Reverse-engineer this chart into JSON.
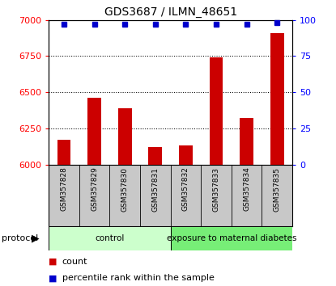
{
  "title": "GDS3687 / ILMN_48651",
  "samples": [
    "GSM357828",
    "GSM357829",
    "GSM357830",
    "GSM357831",
    "GSM357832",
    "GSM357833",
    "GSM357834",
    "GSM357835"
  ],
  "counts": [
    6170,
    6460,
    6390,
    6120,
    6130,
    6740,
    6320,
    6910
  ],
  "percentile_ranks": [
    97,
    97,
    97,
    97,
    97,
    97,
    97,
    98
  ],
  "ylim_left": [
    6000,
    7000
  ],
  "ylim_right": [
    0,
    100
  ],
  "yticks_left": [
    6000,
    6250,
    6500,
    6750,
    7000
  ],
  "yticks_right": [
    0,
    25,
    50,
    75,
    100
  ],
  "bar_color": "#cc0000",
  "dot_color": "#0000cc",
  "bar_bottom": 6000,
  "groups": [
    {
      "label": "control",
      "count": 4,
      "color": "#ccffcc"
    },
    {
      "label": "exposure to maternal diabetes",
      "count": 4,
      "color": "#77ee77"
    }
  ],
  "protocol_label": "protocol",
  "legend_count_label": "count",
  "legend_pct_label": "percentile rank within the sample",
  "sample_bg_color": "#c8c8c8",
  "background_color": "#ffffff",
  "title_fontsize": 10
}
